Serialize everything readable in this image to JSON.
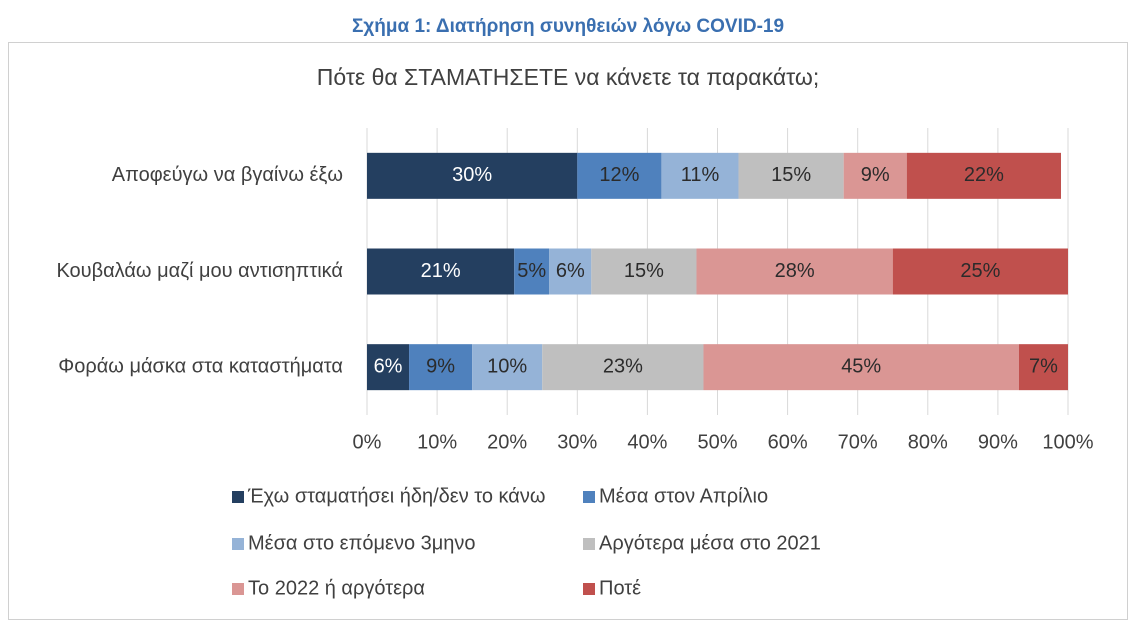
{
  "figure_title": "Σχήμα 1: Διατήρηση συνηθειών λόγω COVID-19",
  "chart_data": {
    "type": "stacked_barh",
    "title": "Πότε θα ΣΤΑΜΑΤΗΣΕΤΕ να κάνετε τα παρακάτω;",
    "categories": [
      "Αποφεύγω να βγαίνω έξω",
      "Κουβαλάω μαζί μου αντισηπτικά",
      "Φοράω μάσκα στα καταστήματα"
    ],
    "series": [
      {
        "name": "Έχω σταματήσει ήδη/δεν το κάνω",
        "color": "#243f60",
        "label_color": "#ffffff",
        "values": [
          30,
          21,
          6
        ],
        "value_labels": [
          "30%",
          "21%",
          "6%"
        ]
      },
      {
        "name": "Μέσα στον Απρίλιο",
        "color": "#4f81bd",
        "label_color": "#2b2b2b",
        "values": [
          12,
          5,
          9
        ],
        "value_labels": [
          "12%",
          "5%",
          "9%"
        ]
      },
      {
        "name": "Μέσα στο επόμενο 3μηνο",
        "color": "#95b3d7",
        "label_color": "#2b2b2b",
        "values": [
          11,
          6,
          10
        ],
        "value_labels": [
          "11%",
          "6%",
          "10%"
        ]
      },
      {
        "name": "Αργότερα μέσα στο 2021",
        "color": "#bfbfbf",
        "label_color": "#2b2b2b",
        "values": [
          15,
          15,
          23
        ],
        "value_labels": [
          "15%",
          "15%",
          "23%"
        ]
      },
      {
        "name": "Το 2022 ή αργότερα",
        "color": "#da9694",
        "label_color": "#2b2b2b",
        "values": [
          9,
          28,
          45
        ],
        "value_labels": [
          "9%",
          "28%",
          "45%"
        ]
      },
      {
        "name": "Ποτέ",
        "color": "#c0504d",
        "label_color": "#2b2b2b",
        "values": [
          22,
          25,
          7
        ],
        "value_labels": [
          "22%",
          "25%",
          "7%"
        ]
      }
    ],
    "xlim": [
      0,
      100
    ],
    "xticks": [
      {
        "value": 0,
        "label": "0%"
      },
      {
        "value": 10,
        "label": "10%"
      },
      {
        "value": 20,
        "label": "20%"
      },
      {
        "value": 30,
        "label": "30%"
      },
      {
        "value": 40,
        "label": "40%"
      },
      {
        "value": 50,
        "label": "50%"
      },
      {
        "value": 60,
        "label": "60%"
      },
      {
        "value": 70,
        "label": "70%"
      },
      {
        "value": 80,
        "label": "80%"
      },
      {
        "value": 90,
        "label": "90%"
      },
      {
        "value": 100,
        "label": "100%"
      }
    ],
    "grid": true,
    "legend": "bottom"
  }
}
